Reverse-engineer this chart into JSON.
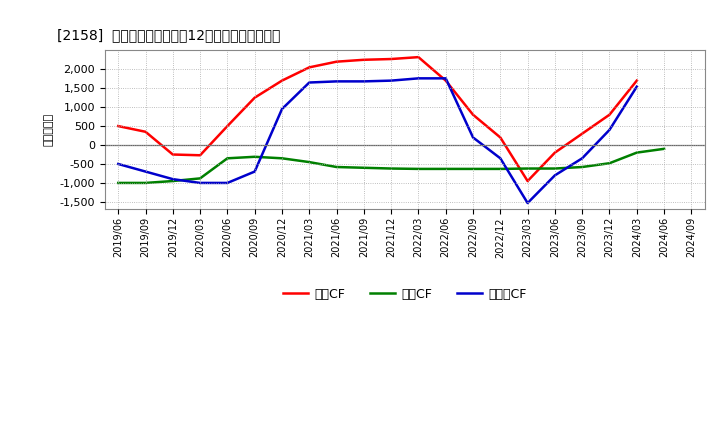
{
  "title": "[2158]  キャッシュフローの12か月移動合計の推移",
  "ylabel": "（百万円）",
  "background_color": "#ffffff",
  "plot_bg_color": "#ffffff",
  "grid_color": "#aaaaaa",
  "x_labels": [
    "2019/06",
    "2019/09",
    "2019/12",
    "2020/03",
    "2020/06",
    "2020/09",
    "2020/12",
    "2021/03",
    "2021/06",
    "2021/09",
    "2021/12",
    "2022/03",
    "2022/06",
    "2022/09",
    "2022/12",
    "2023/03",
    "2023/06",
    "2023/09",
    "2023/12",
    "2024/03",
    "2024/06",
    "2024/09"
  ],
  "operating_cf": [
    500,
    350,
    -250,
    -270,
    500,
    1250,
    1700,
    2050,
    2200,
    2250,
    2270,
    2320,
    1700,
    800,
    200,
    -950,
    -200,
    300,
    800,
    1700,
    null,
    null
  ],
  "investing_cf": [
    -1000,
    -1000,
    -950,
    -880,
    -350,
    -310,
    -350,
    -450,
    -580,
    -600,
    -620,
    -630,
    -630,
    -630,
    -630,
    -620,
    -620,
    -580,
    -480,
    -200,
    -100,
    null
  ],
  "free_cf": [
    -500,
    -700,
    -900,
    -1000,
    -1000,
    -700,
    950,
    1650,
    1680,
    1680,
    1700,
    1760,
    1760,
    200,
    -350,
    -1530,
    -800,
    -350,
    400,
    1540,
    null,
    null
  ],
  "operating_color": "#ff0000",
  "investing_color": "#008000",
  "free_color": "#0000cc",
  "ylim": [
    -1700,
    2500
  ],
  "yticks": [
    -1500,
    -1000,
    -500,
    0,
    500,
    1000,
    1500,
    2000
  ],
  "legend_labels": [
    "営業CF",
    "投資CF",
    "フリーCF"
  ]
}
